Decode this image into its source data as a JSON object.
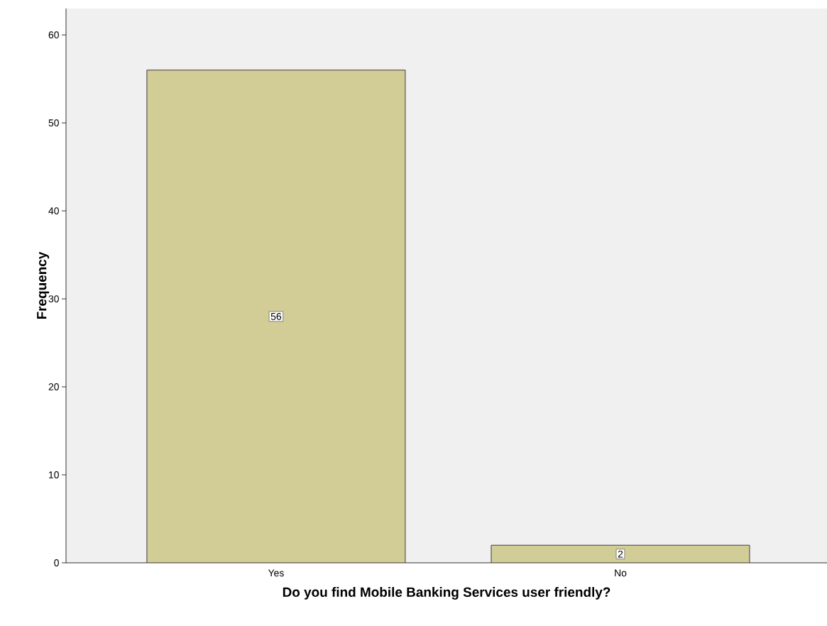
{
  "chart_data": {
    "type": "bar",
    "xlabel": "Do you find Mobile Banking Services user friendly?",
    "ylabel": "Frequency",
    "categories": [
      "Yes",
      "No"
    ],
    "values": [
      56,
      2
    ],
    "color": "#d2cc96",
    "ylim": [
      0,
      63
    ],
    "yticks": [
      0,
      10,
      20,
      30,
      40,
      50,
      60
    ],
    "data_labels": true,
    "grid": false
  }
}
